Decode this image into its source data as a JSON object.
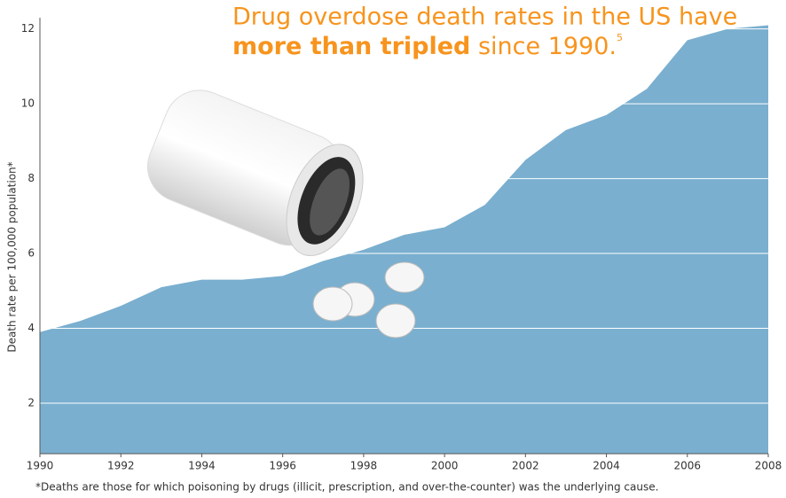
{
  "chart_data": {
    "type": "area",
    "title": {
      "line1": "Drug overdose death rates in the US have",
      "bold": "more than tripled",
      "rest": " since 1990.",
      "superscript": "5"
    },
    "y_label": "Death rate per 100,000 population*",
    "footnote": "*Deaths are those for which poisoning by drugs (illicit, prescription, and over-the-counter) was the underlying cause.",
    "x": [
      1990,
      1991,
      1992,
      1993,
      1994,
      1995,
      1996,
      1997,
      1998,
      1999,
      2000,
      2001,
      2002,
      2003,
      2004,
      2005,
      2006,
      2007,
      2008
    ],
    "values": [
      3.9,
      4.2,
      4.6,
      5.1,
      5.3,
      5.3,
      5.4,
      5.8,
      6.1,
      6.5,
      6.7,
      7.3,
      8.5,
      9.3,
      9.7,
      10.4,
      11.7,
      12.0,
      12.1
    ],
    "color": "#7aafcf",
    "xlim": [
      1990,
      2008
    ],
    "xticks": [
      1990,
      1992,
      1994,
      1996,
      1998,
      2000,
      2002,
      2004,
      2006,
      2008
    ],
    "ylim": [
      0.65,
      12.3
    ],
    "yticks": [
      2,
      4,
      6,
      8,
      10,
      12
    ],
    "grid": true
  }
}
